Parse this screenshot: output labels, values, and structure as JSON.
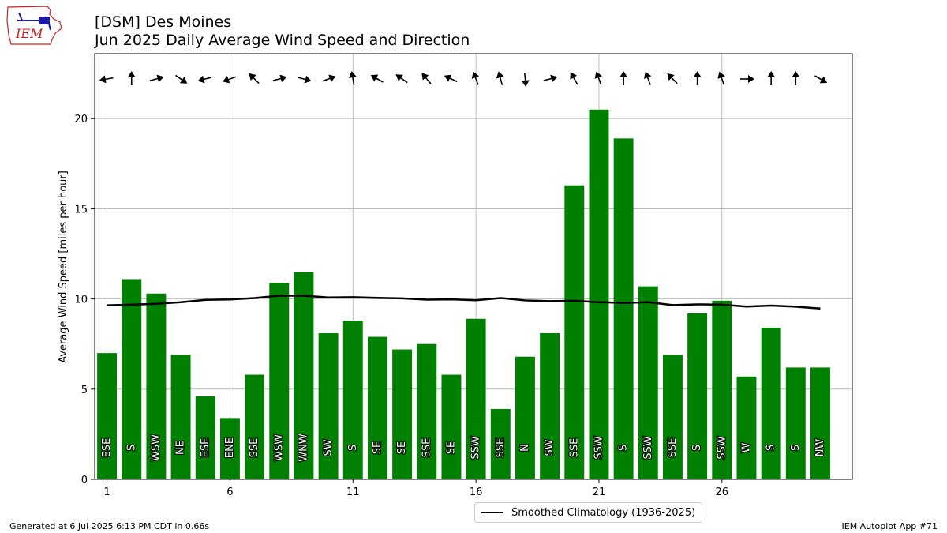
{
  "header": {
    "title_line1": "[DSM] Des Moines",
    "title_line2": "Jun 2025 Daily Average Wind Speed and Direction"
  },
  "logo": {
    "text": "IEM",
    "color": "#cc2222"
  },
  "footer": {
    "generated": "Generated at 6 Jul 2025 6:13 PM CDT in 0.66s",
    "app": "IEM Autoplot App #71"
  },
  "legend": {
    "label": "Smoothed Climatology (1936-2025)"
  },
  "colors": {
    "bar": "#008000",
    "line": "#000000",
    "grid": "#b0b0b0"
  },
  "chart_data": {
    "type": "bar",
    "title": "[DSM] Des Moines Jun 2025 Daily Average Wind Speed and Direction",
    "xlabel": "",
    "ylabel": "Average Wind Speed [miles per hour]",
    "xlim": [
      0.5,
      31.3
    ],
    "ylim": [
      0,
      23.6
    ],
    "grid": true,
    "x_ticks": [
      1,
      6,
      11,
      16,
      21,
      26
    ],
    "y_ticks": [
      0,
      5,
      10,
      15,
      20
    ],
    "days": [
      1,
      2,
      3,
      4,
      5,
      6,
      7,
      8,
      9,
      10,
      11,
      12,
      13,
      14,
      15,
      16,
      17,
      18,
      19,
      20,
      21,
      22,
      23,
      24,
      25,
      26,
      27,
      28,
      29,
      30
    ],
    "values": [
      7.0,
      11.1,
      10.3,
      6.9,
      4.6,
      3.4,
      5.8,
      10.9,
      11.5,
      8.1,
      8.8,
      7.9,
      7.2,
      7.5,
      5.8,
      8.9,
      3.9,
      6.8,
      8.1,
      16.3,
      20.5,
      18.9,
      10.7,
      6.9,
      9.2,
      9.9,
      5.7,
      8.4,
      6.2,
      6.2
    ],
    "directions": [
      "ESE",
      "S",
      "WSW",
      "NE",
      "ESE",
      "ENE",
      "SSE",
      "WSW",
      "WNW",
      "SW",
      "S",
      "SE",
      "SE",
      "SSE",
      "SE",
      "SSW",
      "SSE",
      "N",
      "SW",
      "SSE",
      "SSW",
      "S",
      "SSW",
      "SSE",
      "S",
      "SSW",
      "W",
      "S",
      "S",
      "NW"
    ],
    "arrow_angles_deg": [
      190,
      90,
      15,
      -35,
      195,
      200,
      135,
      15,
      -15,
      20,
      100,
      150,
      145,
      130,
      155,
      110,
      105,
      -85,
      15,
      120,
      110,
      90,
      110,
      135,
      90,
      110,
      0,
      90,
      90,
      -30
    ],
    "climatology": {
      "name": "Smoothed Climatology (1936-2025)",
      "values": [
        9.65,
        9.68,
        9.73,
        9.82,
        9.95,
        9.97,
        10.05,
        10.18,
        10.18,
        10.08,
        10.1,
        10.06,
        10.03,
        9.96,
        9.98,
        9.93,
        10.05,
        9.92,
        9.88,
        9.9,
        9.82,
        9.78,
        9.82,
        9.66,
        9.7,
        9.68,
        9.58,
        9.63,
        9.57,
        9.47
      ]
    },
    "legend_position": "lower-center"
  }
}
